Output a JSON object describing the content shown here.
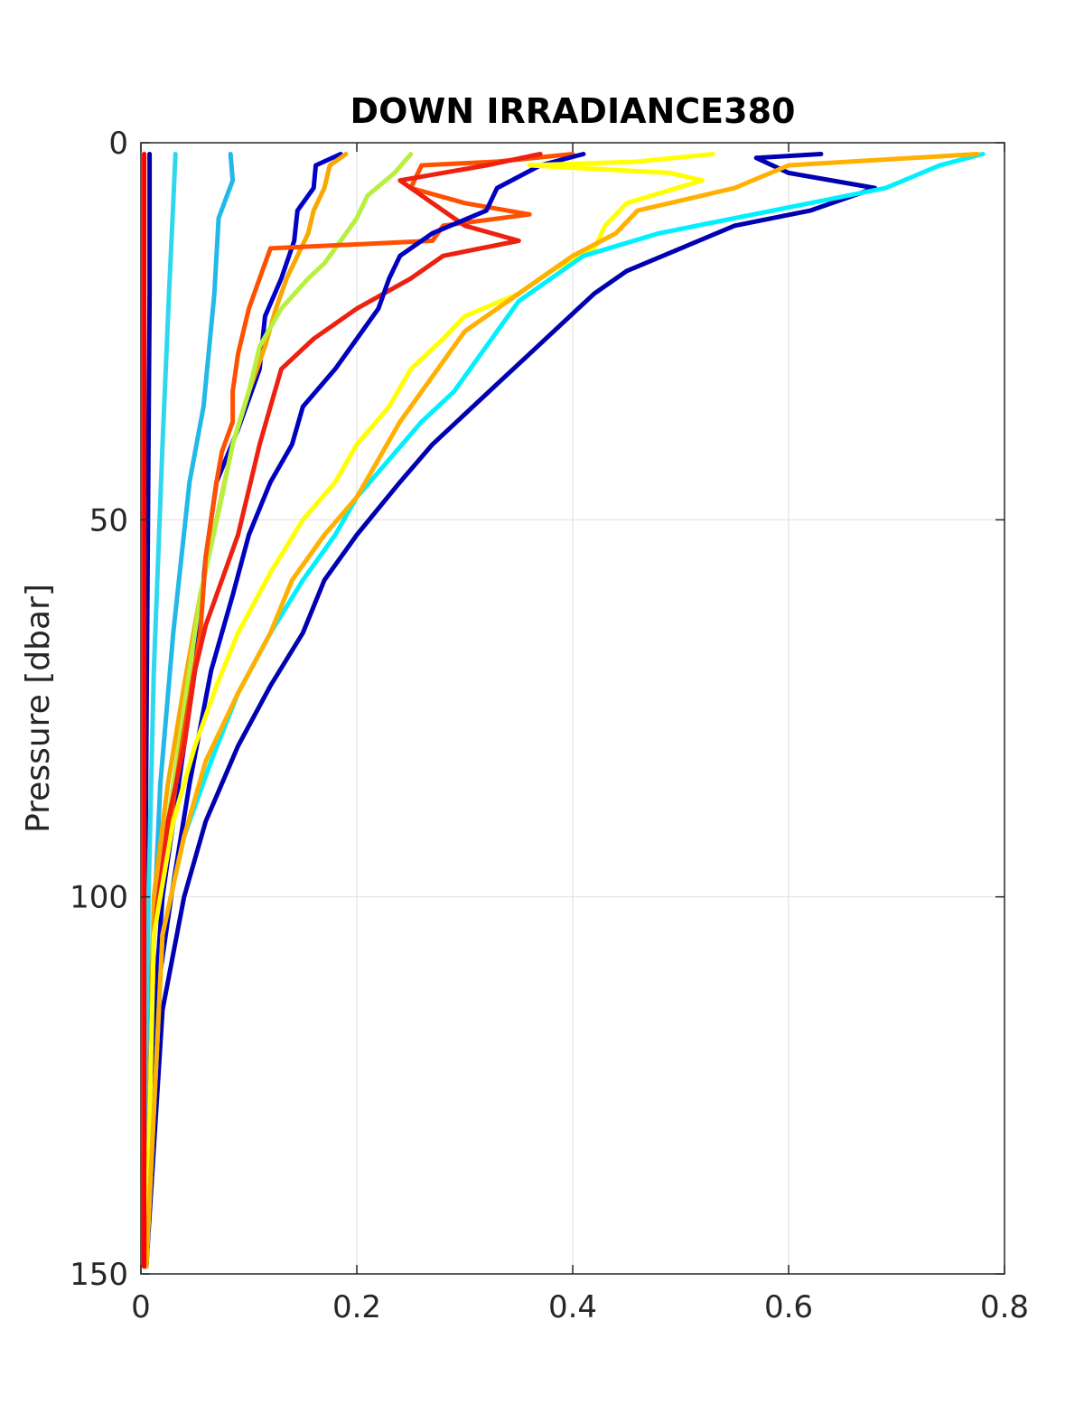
{
  "chart_data": {
    "type": "line",
    "title": "DOWN IRRADIANCE380",
    "xlabel": "",
    "ylabel": "Pressure [dbar]",
    "xlim": [
      0,
      0.8
    ],
    "ylim": [
      0,
      150
    ],
    "y_reversed": true,
    "grid": true,
    "x_ticks": [
      0,
      0.2,
      0.4,
      0.6,
      0.8
    ],
    "x_tick_labels": [
      "0",
      "0.2",
      "0.4",
      "0.6",
      "0.8"
    ],
    "y_ticks": [
      0,
      50,
      100,
      150
    ],
    "y_tick_labels": [
      "0",
      "50",
      "100",
      "150"
    ],
    "series": [
      {
        "color": "#0000A0",
        "points": [
          [
            0.008,
            1.5
          ],
          [
            0.008,
            20
          ],
          [
            0.006,
            60
          ],
          [
            0.004,
            100
          ],
          [
            0.003,
            149
          ]
        ]
      },
      {
        "color": "#2FD8EE",
        "points": [
          [
            0.032,
            1.5
          ],
          [
            0.03,
            8
          ],
          [
            0.026,
            20
          ],
          [
            0.02,
            40
          ],
          [
            0.012,
            70
          ],
          [
            0.007,
            100
          ],
          [
            0.004,
            149
          ]
        ]
      },
      {
        "color": "#22B8E8",
        "points": [
          [
            0.083,
            1.5
          ],
          [
            0.085,
            5
          ],
          [
            0.072,
            10
          ],
          [
            0.068,
            20
          ],
          [
            0.058,
            35
          ],
          [
            0.045,
            45
          ],
          [
            0.03,
            65
          ],
          [
            0.018,
            85
          ],
          [
            0.01,
            110
          ],
          [
            0.005,
            149
          ]
        ]
      },
      {
        "color": "#0000C8",
        "points": [
          [
            0.185,
            1.5
          ],
          [
            0.162,
            3
          ],
          [
            0.16,
            6
          ],
          [
            0.145,
            9
          ],
          [
            0.142,
            13
          ],
          [
            0.13,
            18
          ],
          [
            0.115,
            23
          ],
          [
            0.11,
            30
          ],
          [
            0.09,
            38
          ],
          [
            0.07,
            45
          ],
          [
            0.06,
            55
          ],
          [
            0.05,
            70
          ],
          [
            0.035,
            85
          ],
          [
            0.02,
            100
          ],
          [
            0.01,
            120
          ],
          [
            0.005,
            149
          ]
        ]
      },
      {
        "color": "#F8A800",
        "points": [
          [
            0.19,
            1.5
          ],
          [
            0.175,
            3
          ],
          [
            0.17,
            6
          ],
          [
            0.16,
            9
          ],
          [
            0.155,
            12
          ],
          [
            0.145,
            15
          ],
          [
            0.135,
            18
          ],
          [
            0.125,
            22
          ],
          [
            0.115,
            27
          ],
          [
            0.1,
            33
          ],
          [
            0.085,
            40
          ],
          [
            0.07,
            50
          ],
          [
            0.055,
            60
          ],
          [
            0.04,
            72
          ],
          [
            0.025,
            85
          ],
          [
            0.012,
            100
          ],
          [
            0.005,
            149
          ]
        ]
      },
      {
        "color": "#B8F040",
        "points": [
          [
            0.25,
            1.5
          ],
          [
            0.235,
            4
          ],
          [
            0.21,
            7
          ],
          [
            0.2,
            10
          ],
          [
            0.185,
            13
          ],
          [
            0.17,
            16
          ],
          [
            0.155,
            18
          ],
          [
            0.13,
            22
          ],
          [
            0.11,
            27
          ],
          [
            0.1,
            33
          ],
          [
            0.085,
            40
          ],
          [
            0.075,
            47
          ],
          [
            0.055,
            60
          ],
          [
            0.04,
            75
          ],
          [
            0.025,
            90
          ],
          [
            0.012,
            105
          ],
          [
            0.005,
            149
          ]
        ]
      },
      {
        "color": "#FF5000",
        "points": [
          [
            0.4,
            1.5
          ],
          [
            0.33,
            2.5
          ],
          [
            0.26,
            3
          ],
          [
            0.25,
            6
          ],
          [
            0.3,
            8
          ],
          [
            0.36,
            9.5
          ],
          [
            0.28,
            11
          ],
          [
            0.27,
            13
          ],
          [
            0.12,
            14
          ],
          [
            0.11,
            18
          ],
          [
            0.1,
            22
          ],
          [
            0.09,
            28
          ],
          [
            0.085,
            33
          ],
          [
            0.085,
            37
          ],
          [
            0.075,
            41
          ],
          [
            0.07,
            45
          ],
          [
            0.06,
            55
          ],
          [
            0.055,
            65
          ],
          [
            0.04,
            78
          ],
          [
            0.025,
            92
          ],
          [
            0.012,
            105
          ],
          [
            0.005,
            149
          ]
        ]
      },
      {
        "color": "#EE2010",
        "points": [
          [
            0.37,
            1.5
          ],
          [
            0.32,
            3
          ],
          [
            0.24,
            5
          ],
          [
            0.27,
            8
          ],
          [
            0.3,
            11
          ],
          [
            0.35,
            13
          ],
          [
            0.28,
            15
          ],
          [
            0.25,
            18
          ],
          [
            0.2,
            22
          ],
          [
            0.16,
            26
          ],
          [
            0.13,
            30
          ],
          [
            0.12,
            35
          ],
          [
            0.11,
            40
          ],
          [
            0.1,
            46
          ],
          [
            0.09,
            52
          ],
          [
            0.075,
            58
          ],
          [
            0.06,
            64
          ],
          [
            0.05,
            70
          ],
          [
            0.04,
            80
          ],
          [
            0.025,
            90
          ],
          [
            0.012,
            105
          ],
          [
            0.005,
            149
          ]
        ]
      },
      {
        "color": "#0000C0",
        "points": [
          [
            0.41,
            1.5
          ],
          [
            0.37,
            3
          ],
          [
            0.33,
            6
          ],
          [
            0.32,
            9
          ],
          [
            0.27,
            12
          ],
          [
            0.24,
            15
          ],
          [
            0.23,
            18
          ],
          [
            0.22,
            22
          ],
          [
            0.2,
            26
          ],
          [
            0.18,
            30
          ],
          [
            0.15,
            35
          ],
          [
            0.14,
            40
          ],
          [
            0.12,
            45
          ],
          [
            0.1,
            52
          ],
          [
            0.085,
            60
          ],
          [
            0.065,
            70
          ],
          [
            0.045,
            85
          ],
          [
            0.028,
            100
          ],
          [
            0.013,
            115
          ],
          [
            0.005,
            149
          ]
        ]
      },
      {
        "color": "#FFFF00",
        "points": [
          [
            0.53,
            1.5
          ],
          [
            0.46,
            2.5
          ],
          [
            0.36,
            3
          ],
          [
            0.49,
            4
          ],
          [
            0.52,
            5
          ],
          [
            0.45,
            8
          ],
          [
            0.43,
            11
          ],
          [
            0.42,
            14
          ],
          [
            0.38,
            17
          ],
          [
            0.35,
            20
          ],
          [
            0.3,
            23
          ],
          [
            0.28,
            26
          ],
          [
            0.25,
            30
          ],
          [
            0.23,
            35
          ],
          [
            0.2,
            40
          ],
          [
            0.18,
            45
          ],
          [
            0.15,
            50
          ],
          [
            0.12,
            57
          ],
          [
            0.09,
            65
          ],
          [
            0.07,
            72
          ],
          [
            0.05,
            80
          ],
          [
            0.03,
            90
          ],
          [
            0.012,
            105
          ],
          [
            0.005,
            149
          ]
        ]
      },
      {
        "color": "#0000B0",
        "points": [
          [
            0.63,
            1.5
          ],
          [
            0.57,
            2
          ],
          [
            0.6,
            4
          ],
          [
            0.68,
            6
          ],
          [
            0.62,
            9
          ],
          [
            0.55,
            11
          ],
          [
            0.5,
            14
          ],
          [
            0.45,
            17
          ],
          [
            0.42,
            20
          ],
          [
            0.39,
            24
          ],
          [
            0.36,
            28
          ],
          [
            0.33,
            32
          ],
          [
            0.3,
            36
          ],
          [
            0.27,
            40
          ],
          [
            0.24,
            45
          ],
          [
            0.2,
            52
          ],
          [
            0.17,
            58
          ],
          [
            0.15,
            65
          ],
          [
            0.12,
            72
          ],
          [
            0.09,
            80
          ],
          [
            0.06,
            90
          ],
          [
            0.04,
            100
          ],
          [
            0.02,
            115
          ],
          [
            0.005,
            149
          ]
        ]
      },
      {
        "color": "#00F0FF",
        "points": [
          [
            0.78,
            1.5
          ],
          [
            0.74,
            3
          ],
          [
            0.69,
            6
          ],
          [
            0.55,
            10
          ],
          [
            0.48,
            12
          ],
          [
            0.41,
            15
          ],
          [
            0.38,
            18
          ],
          [
            0.35,
            21
          ],
          [
            0.33,
            25
          ],
          [
            0.31,
            29
          ],
          [
            0.29,
            33
          ],
          [
            0.26,
            37
          ],
          [
            0.23,
            42
          ],
          [
            0.2,
            47
          ],
          [
            0.18,
            52
          ],
          [
            0.15,
            58
          ],
          [
            0.12,
            65
          ],
          [
            0.09,
            73
          ],
          [
            0.065,
            82
          ],
          [
            0.04,
            92
          ],
          [
            0.02,
            105
          ],
          [
            0.005,
            149
          ]
        ]
      },
      {
        "color": "#FFB000",
        "points": [
          [
            0.775,
            1.5
          ],
          [
            0.6,
            3
          ],
          [
            0.55,
            6
          ],
          [
            0.46,
            9
          ],
          [
            0.44,
            12
          ],
          [
            0.4,
            15
          ],
          [
            0.37,
            18
          ],
          [
            0.34,
            21
          ],
          [
            0.3,
            25
          ],
          [
            0.28,
            29
          ],
          [
            0.26,
            33
          ],
          [
            0.24,
            37
          ],
          [
            0.22,
            42
          ],
          [
            0.2,
            47
          ],
          [
            0.17,
            52
          ],
          [
            0.14,
            58
          ],
          [
            0.12,
            65
          ],
          [
            0.09,
            73
          ],
          [
            0.06,
            82
          ],
          [
            0.04,
            92
          ],
          [
            0.02,
            105
          ],
          [
            0.005,
            149
          ]
        ]
      },
      {
        "color": "#FF0000",
        "points": [
          [
            0.003,
            1.5
          ],
          [
            0.003,
            50
          ],
          [
            0.003,
            100
          ],
          [
            0.003,
            149
          ]
        ]
      }
    ]
  }
}
